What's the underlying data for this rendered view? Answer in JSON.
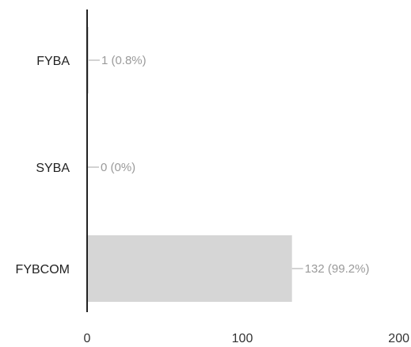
{
  "chart_data": {
    "type": "bar",
    "orientation": "horizontal",
    "categories": [
      "FYBA",
      "SYBA",
      "FYBCOM"
    ],
    "values": [
      1,
      0,
      132
    ],
    "data_labels": [
      "1 (0.8%)",
      "0 (0%)",
      "132 (99.2%)"
    ],
    "xlim": [
      0,
      200
    ],
    "xticks": [
      0,
      100,
      200
    ],
    "title": "",
    "xlabel": "",
    "ylabel": "",
    "grid": false,
    "legend": "none",
    "colors": {
      "bar": "#d6d6d6",
      "axis": "#222222",
      "leader": "#b5b5b5"
    }
  }
}
